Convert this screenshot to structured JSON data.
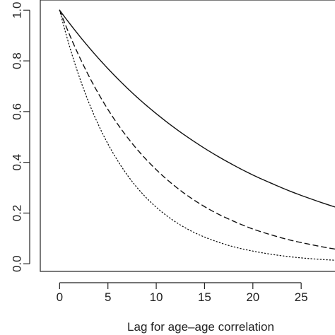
{
  "chart_data": {
    "type": "line",
    "title": "",
    "xlabel": "Lag for age–age correlation",
    "ylabel": "",
    "xlim": [
      -2,
      28.5
    ],
    "ylim": [
      -0.03,
      1.04
    ],
    "x_ticks": [
      0,
      5,
      10,
      15,
      20,
      25
    ],
    "x_tick_labels": [
      "0",
      "5",
      "10",
      "15",
      "20",
      "25"
    ],
    "y_ticks": [
      0.0,
      0.2,
      0.4,
      0.6,
      0.8,
      1.0
    ],
    "y_tick_labels": [
      "0.0",
      "0.2",
      "0.4",
      "0.6",
      "0.8",
      "1.0"
    ],
    "grid": false,
    "legend": "none",
    "series": [
      {
        "style": "solid",
        "x": [
          0,
          2,
          4,
          6,
          8,
          10,
          12,
          14,
          16,
          18,
          20,
          22,
          24,
          26,
          28.5
        ],
        "y": [
          1.0,
          0.901,
          0.811,
          0.73,
          0.657,
          0.592,
          0.533,
          0.48,
          0.432,
          0.389,
          0.35,
          0.316,
          0.284,
          0.256,
          0.224
        ]
      },
      {
        "style": "dashed",
        "x": [
          0,
          2,
          4,
          6,
          8,
          10,
          12,
          14,
          16,
          18,
          20,
          22,
          24,
          26,
          28.5
        ],
        "y": [
          1.0,
          0.82,
          0.672,
          0.551,
          0.452,
          0.371,
          0.304,
          0.249,
          0.204,
          0.168,
          0.137,
          0.113,
          0.092,
          0.076,
          0.058
        ]
      },
      {
        "style": "dotted",
        "x": [
          0,
          2,
          4,
          6,
          8,
          10,
          12,
          14,
          16,
          18,
          20,
          22,
          24,
          26,
          28.5
        ],
        "y": [
          1.0,
          0.741,
          0.549,
          0.407,
          0.301,
          0.223,
          0.165,
          0.122,
          0.091,
          0.067,
          0.05,
          0.037,
          0.027,
          0.02,
          0.014
        ]
      }
    ]
  }
}
